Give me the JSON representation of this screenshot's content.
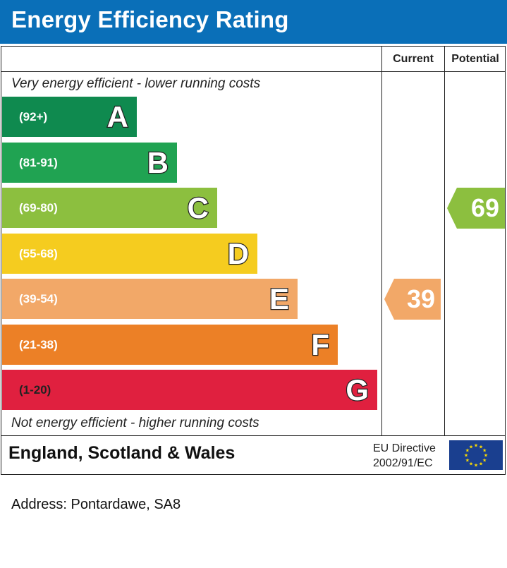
{
  "header": {
    "title": "Energy Efficiency Rating"
  },
  "columns": {
    "current": "Current",
    "potential": "Potential"
  },
  "notes": {
    "top": "Very energy efficient - lower running costs",
    "bottom": "Not energy efficient - higher running costs"
  },
  "chart_data": {
    "type": "bar",
    "title": "Energy Efficiency Rating",
    "categories": [
      "A",
      "B",
      "C",
      "D",
      "E",
      "F",
      "G"
    ],
    "bands": [
      {
        "letter": "A",
        "range": "(92+)",
        "color": "#0f8a4f"
      },
      {
        "letter": "B",
        "range": "(81-91)",
        "color": "#20a352"
      },
      {
        "letter": "C",
        "range": "(69-80)",
        "color": "#8cbf3f"
      },
      {
        "letter": "D",
        "range": "(55-68)",
        "color": "#f5cc1f"
      },
      {
        "letter": "E",
        "range": "(39-54)",
        "color": "#f2a868"
      },
      {
        "letter": "F",
        "range": "(21-38)",
        "color": "#ec8026"
      },
      {
        "letter": "G",
        "range": "(1-20)",
        "color": "#e0203f"
      }
    ],
    "current": {
      "value": 39,
      "band": "E",
      "color": "#f2a868"
    },
    "potential": {
      "value": 69,
      "band": "C",
      "color": "#8cbf3f"
    }
  },
  "footer": {
    "region": "England, Scotland & Wales",
    "directive_line1": "EU Directive",
    "directive_line2": "2002/91/EC"
  },
  "address": "Address: Pontardawe, SA8"
}
